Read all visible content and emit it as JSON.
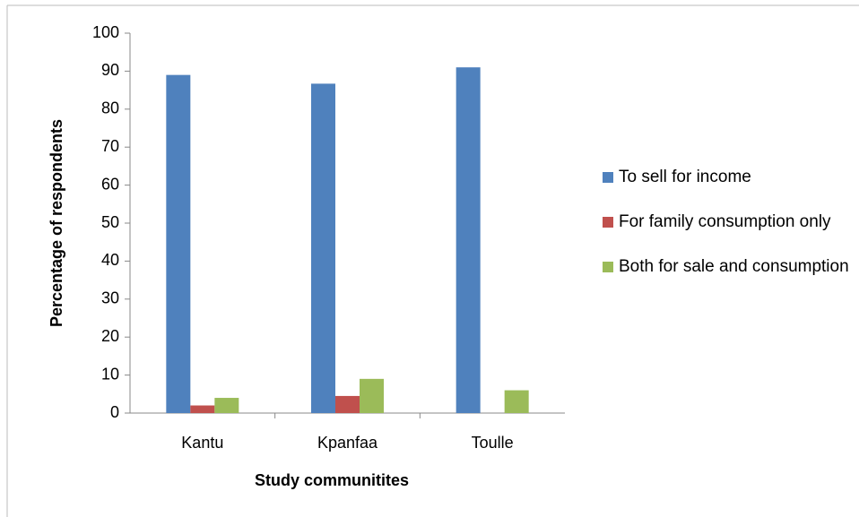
{
  "chart_data": {
    "type": "bar",
    "x_label": "Study communitites",
    "y_label": "Percentage of respondents",
    "categories": [
      "Kantu",
      "Kpanfaa",
      "Toulle"
    ],
    "series": [
      {
        "name": "To sell for income",
        "color": "#4f81bd",
        "values": [
          89,
          86.7,
          91
        ]
      },
      {
        "name": "For family consumption only",
        "color": "#c0504d",
        "values": [
          2,
          4.5,
          0
        ]
      },
      {
        "name": "Both for sale and consumption",
        "color": "#9bbb59",
        "values": [
          4,
          9,
          6
        ]
      }
    ],
    "ylim": [
      0,
      100
    ],
    "yticks": [
      0,
      10,
      20,
      30,
      40,
      50,
      60,
      70,
      80,
      90,
      100
    ],
    "grid": false
  }
}
